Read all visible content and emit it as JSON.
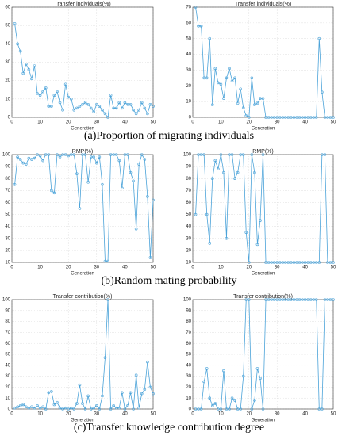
{
  "chart_data": [
    {
      "type": "line",
      "title": "Transfer individuals(%)",
      "xlabel": "Generation",
      "x": [
        1,
        2,
        3,
        4,
        5,
        6,
        7,
        8,
        9,
        10,
        11,
        12,
        13,
        14,
        15,
        16,
        17,
        18,
        19,
        20,
        21,
        22,
        23,
        24,
        25,
        26,
        27,
        28,
        29,
        30,
        31,
        32,
        33,
        34,
        35,
        36,
        37,
        38,
        39,
        40,
        41,
        42,
        43,
        44,
        45,
        46,
        47,
        48,
        49,
        50
      ],
      "series": [
        {
          "color": "#4ba3d9",
          "values": [
            51,
            40,
            36,
            24,
            29,
            26,
            21,
            28,
            13,
            12,
            14,
            16,
            6,
            6,
            12,
            14,
            8,
            4,
            18,
            11,
            10,
            4,
            5,
            6,
            7,
            8,
            7,
            5,
            3,
            7,
            6,
            4,
            2,
            0,
            12,
            5,
            5,
            8,
            5,
            8,
            7,
            7,
            4,
            2,
            4,
            8,
            5,
            2,
            7,
            6
          ]
        }
      ],
      "xlim": [
        0,
        50
      ],
      "xticks": [
        0,
        10,
        20,
        30,
        40,
        50
      ],
      "ylim": [
        0,
        60
      ],
      "yticks": [
        0,
        10,
        20,
        30,
        40,
        50,
        60
      ],
      "grid": true
    },
    {
      "type": "line",
      "title": "Transfer individuals(%)",
      "xlabel": "Generation",
      "x": [
        1,
        2,
        3,
        4,
        5,
        6,
        7,
        8,
        9,
        10,
        11,
        12,
        13,
        14,
        15,
        16,
        17,
        18,
        19,
        20,
        21,
        22,
        23,
        24,
        25,
        26,
        27,
        28,
        29,
        30,
        31,
        32,
        33,
        34,
        35,
        36,
        37,
        38,
        39,
        40,
        41,
        42,
        43,
        44,
        45,
        46,
        47,
        48,
        49,
        50
      ],
      "series": [
        {
          "color": "#4ba3d9",
          "values": [
            70,
            58,
            58,
            25,
            25,
            50,
            8,
            31,
            22,
            21,
            12,
            25,
            31,
            23,
            25,
            9,
            18,
            6,
            1,
            0,
            25,
            8,
            9,
            12,
            12,
            0,
            0,
            0,
            0,
            0,
            0,
            0,
            0,
            0,
            0,
            0,
            0,
            0,
            0,
            0,
            0,
            0,
            0,
            0,
            50,
            16,
            0,
            0,
            0,
            0
          ]
        }
      ],
      "xlim": [
        0,
        50
      ],
      "xticks": [
        0,
        10,
        20,
        30,
        40,
        50
      ],
      "ylim": [
        0,
        70
      ],
      "yticks": [
        0,
        10,
        20,
        30,
        40,
        50,
        60,
        70
      ],
      "grid": true
    },
    {
      "type": "line",
      "title": "RMP(%)",
      "xlabel": "Generation",
      "x": [
        1,
        2,
        3,
        4,
        5,
        6,
        7,
        8,
        9,
        10,
        11,
        12,
        13,
        14,
        15,
        16,
        17,
        18,
        19,
        20,
        21,
        22,
        23,
        24,
        25,
        26,
        27,
        28,
        29,
        30,
        31,
        32,
        33,
        34,
        35,
        36,
        37,
        38,
        39,
        40,
        41,
        42,
        43,
        44,
        45,
        46,
        47,
        48,
        49,
        50
      ],
      "series": [
        {
          "color": "#4ba3d9",
          "values": [
            75,
            98,
            96,
            93,
            92,
            97,
            96,
            97,
            100,
            99,
            95,
            100,
            100,
            70,
            68,
            100,
            98,
            100,
            100,
            99,
            100,
            100,
            84,
            55,
            100,
            100,
            77,
            98,
            98,
            93,
            98,
            75,
            11,
            11,
            100,
            100,
            100,
            95,
            72,
            100,
            100,
            85,
            78,
            38,
            92,
            100,
            96,
            65,
            14,
            62
          ]
        }
      ],
      "xlim": [
        0,
        50
      ],
      "xticks": [
        0,
        10,
        20,
        30,
        40,
        50
      ],
      "ylim": [
        10,
        100
      ],
      "yticks": [
        10,
        20,
        30,
        40,
        50,
        60,
        70,
        80,
        90,
        100
      ],
      "grid": true
    },
    {
      "type": "line",
      "title": "RMP(%)",
      "xlabel": "Generation",
      "x": [
        1,
        2,
        3,
        4,
        5,
        6,
        7,
        8,
        9,
        10,
        11,
        12,
        13,
        14,
        15,
        16,
        17,
        18,
        19,
        20,
        21,
        22,
        23,
        24,
        25,
        26,
        27,
        28,
        29,
        30,
        31,
        32,
        33,
        34,
        35,
        36,
        37,
        38,
        39,
        40,
        41,
        42,
        43,
        44,
        45,
        46,
        47,
        48,
        49,
        50
      ],
      "series": [
        {
          "color": "#4ba3d9",
          "values": [
            50,
            100,
            100,
            100,
            50,
            26,
            80,
            95,
            88,
            100,
            85,
            30,
            100,
            100,
            80,
            85,
            100,
            100,
            35,
            10,
            100,
            85,
            25,
            45,
            100,
            10,
            10,
            10,
            10,
            10,
            10,
            10,
            10,
            10,
            10,
            10,
            10,
            10,
            10,
            10,
            10,
            10,
            10,
            10,
            10,
            100,
            100,
            10,
            10,
            10
          ]
        }
      ],
      "xlim": [
        0,
        50
      ],
      "xticks": [
        0,
        10,
        20,
        30,
        40,
        50
      ],
      "ylim": [
        10,
        100
      ],
      "yticks": [
        10,
        20,
        30,
        40,
        50,
        60,
        70,
        80,
        90,
        100
      ],
      "grid": true
    },
    {
      "type": "line",
      "title": "Transfer contribution(%)",
      "xlabel": "Generation",
      "x": [
        1,
        2,
        3,
        4,
        5,
        6,
        7,
        8,
        9,
        10,
        11,
        12,
        13,
        14,
        15,
        16,
        17,
        18,
        19,
        20,
        21,
        22,
        23,
        24,
        25,
        26,
        27,
        28,
        29,
        30,
        31,
        32,
        33,
        34,
        35,
        36,
        37,
        38,
        39,
        40,
        41,
        42,
        43,
        44,
        45,
        46,
        47,
        48,
        49,
        50
      ],
      "series": [
        {
          "color": "#4ba3d9",
          "values": [
            1,
            2,
            3,
            4,
            2,
            1,
            2,
            1,
            3,
            1,
            2,
            0,
            15,
            16,
            4,
            6,
            1,
            0,
            1,
            0,
            1,
            0,
            5,
            22,
            5,
            0,
            12,
            0,
            1,
            3,
            0,
            12,
            47,
            100,
            0,
            3,
            1,
            1,
            15,
            0,
            3,
            15,
            0,
            31,
            1,
            14,
            18,
            43,
            20,
            14
          ]
        }
      ],
      "xlim": [
        0,
        50
      ],
      "xticks": [
        0,
        10,
        20,
        30,
        40,
        50
      ],
      "ylim": [
        0,
        100
      ],
      "yticks": [
        0,
        10,
        20,
        30,
        40,
        50,
        60,
        70,
        80,
        90,
        100
      ],
      "grid": true
    },
    {
      "type": "line",
      "title": "Transfer contribution(%)",
      "xlabel": "Generation",
      "x": [
        1,
        2,
        3,
        4,
        5,
        6,
        7,
        8,
        9,
        10,
        11,
        12,
        13,
        14,
        15,
        16,
        17,
        18,
        19,
        20,
        21,
        22,
        23,
        24,
        25,
        26,
        27,
        28,
        29,
        30,
        31,
        32,
        33,
        34,
        35,
        36,
        37,
        38,
        39,
        40,
        41,
        42,
        43,
        44,
        45,
        46,
        47,
        48,
        49,
        50
      ],
      "series": [
        {
          "color": "#4ba3d9",
          "values": [
            0,
            0,
            0,
            25,
            37,
            10,
            3,
            5,
            0,
            0,
            35,
            0,
            0,
            10,
            8,
            0,
            0,
            30,
            100,
            100,
            0,
            8,
            37,
            28,
            0,
            100,
            100,
            100,
            100,
            100,
            100,
            100,
            100,
            100,
            100,
            100,
            100,
            100,
            100,
            100,
            100,
            100,
            100,
            100,
            0,
            0,
            100,
            100,
            100,
            100
          ]
        }
      ],
      "xlim": [
        0,
        50
      ],
      "xticks": [
        0,
        10,
        20,
        30,
        40,
        50
      ],
      "ylim": [
        0,
        100
      ],
      "yticks": [
        0,
        10,
        20,
        30,
        40,
        50,
        60,
        70,
        80,
        90,
        100
      ],
      "grid": true
    }
  ],
  "captions": [
    "(a)Proportion of migrating individuals",
    "(b)Random mating probability",
    "(c)Transfer knowledge contribution degree"
  ]
}
